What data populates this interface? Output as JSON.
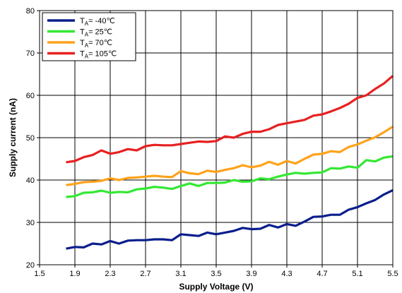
{
  "chart_data": {
    "type": "line",
    "xlabel": "Supply Voltage (V)",
    "ylabel": "Supply current (nA)",
    "xlim": [
      1.5,
      5.5
    ],
    "ylim": [
      20,
      80
    ],
    "xticks": [
      "1.5",
      "1.9",
      "2.3",
      "2.7",
      "3.1",
      "3.5",
      "3.9",
      "4.3",
      "4.7",
      "5.1",
      "5.5"
    ],
    "yticks": [
      "20",
      "30",
      "40",
      "50",
      "60",
      "70",
      "80"
    ],
    "grid": true,
    "legend_position": "top-left",
    "x": [
      1.8,
      1.9,
      2.0,
      2.1,
      2.2,
      2.3,
      2.4,
      2.5,
      2.6,
      2.7,
      2.8,
      2.9,
      3.0,
      3.1,
      3.2,
      3.3,
      3.4,
      3.5,
      3.6,
      3.7,
      3.8,
      3.9,
      4.0,
      4.1,
      4.2,
      4.3,
      4.4,
      4.5,
      4.6,
      4.7,
      4.8,
      4.9,
      5.0,
      5.1,
      5.2,
      5.3,
      5.4,
      5.5
    ],
    "series": [
      {
        "name": "TA= -40℃",
        "name_parts": [
          "T",
          "A",
          "= -40℃"
        ],
        "color": "#0a1e8c",
        "values": [
          23.8,
          24.2,
          24.1,
          25.0,
          24.8,
          25.6,
          25.0,
          25.7,
          25.8,
          25.8,
          26.0,
          26.0,
          25.8,
          27.2,
          27.0,
          26.8,
          27.6,
          27.2,
          27.6,
          28.0,
          28.7,
          28.4,
          28.5,
          29.4,
          28.8,
          29.6,
          29.2,
          30.2,
          31.3,
          31.4,
          31.8,
          31.8,
          33.0,
          33.6,
          34.5,
          35.3,
          36.6,
          37.6
        ]
      },
      {
        "name": "TA= 25℃",
        "name_parts": [
          "T",
          "A",
          "= 25℃"
        ],
        "color": "#33e833",
        "values": [
          36.0,
          36.2,
          37.0,
          37.1,
          37.5,
          37.0,
          37.2,
          37.1,
          37.8,
          38.0,
          38.4,
          38.2,
          37.9,
          38.6,
          39.2,
          38.6,
          39.3,
          39.3,
          39.4,
          40.0,
          39.6,
          39.7,
          40.4,
          40.2,
          40.8,
          41.3,
          41.7,
          41.5,
          41.7,
          41.8,
          42.8,
          42.7,
          43.2,
          42.9,
          44.7,
          44.4,
          45.3,
          45.6
        ]
      },
      {
        "name": "TA= 70℃",
        "name_parts": [
          "T",
          "A",
          "= 70℃"
        ],
        "color": "#ffa21a",
        "values": [
          38.8,
          39.1,
          39.5,
          39.6,
          39.8,
          40.4,
          40.0,
          40.5,
          40.6,
          40.8,
          41.0,
          40.8,
          40.7,
          42.1,
          41.6,
          41.4,
          42.2,
          41.9,
          42.4,
          42.8,
          43.5,
          43.0,
          43.4,
          44.3,
          43.6,
          44.5,
          43.9,
          45.0,
          46.0,
          46.2,
          46.8,
          46.6,
          47.8,
          48.4,
          49.3,
          50.1,
          51.3,
          52.6
        ]
      },
      {
        "name": "TA= 105℃",
        "name_parts": [
          "T",
          "A",
          "= 105℃"
        ],
        "color": "#e82020",
        "values": [
          44.2,
          44.5,
          45.4,
          45.9,
          47.0,
          46.2,
          46.6,
          47.3,
          47.0,
          48.0,
          48.3,
          48.2,
          48.2,
          48.5,
          48.8,
          49.1,
          49.0,
          49.2,
          50.3,
          50.0,
          50.9,
          51.4,
          51.4,
          52.0,
          53.0,
          53.4,
          53.8,
          54.2,
          55.2,
          55.5,
          56.2,
          57.0,
          58.0,
          59.4,
          60.0,
          61.5,
          62.8,
          64.6
        ]
      }
    ]
  }
}
